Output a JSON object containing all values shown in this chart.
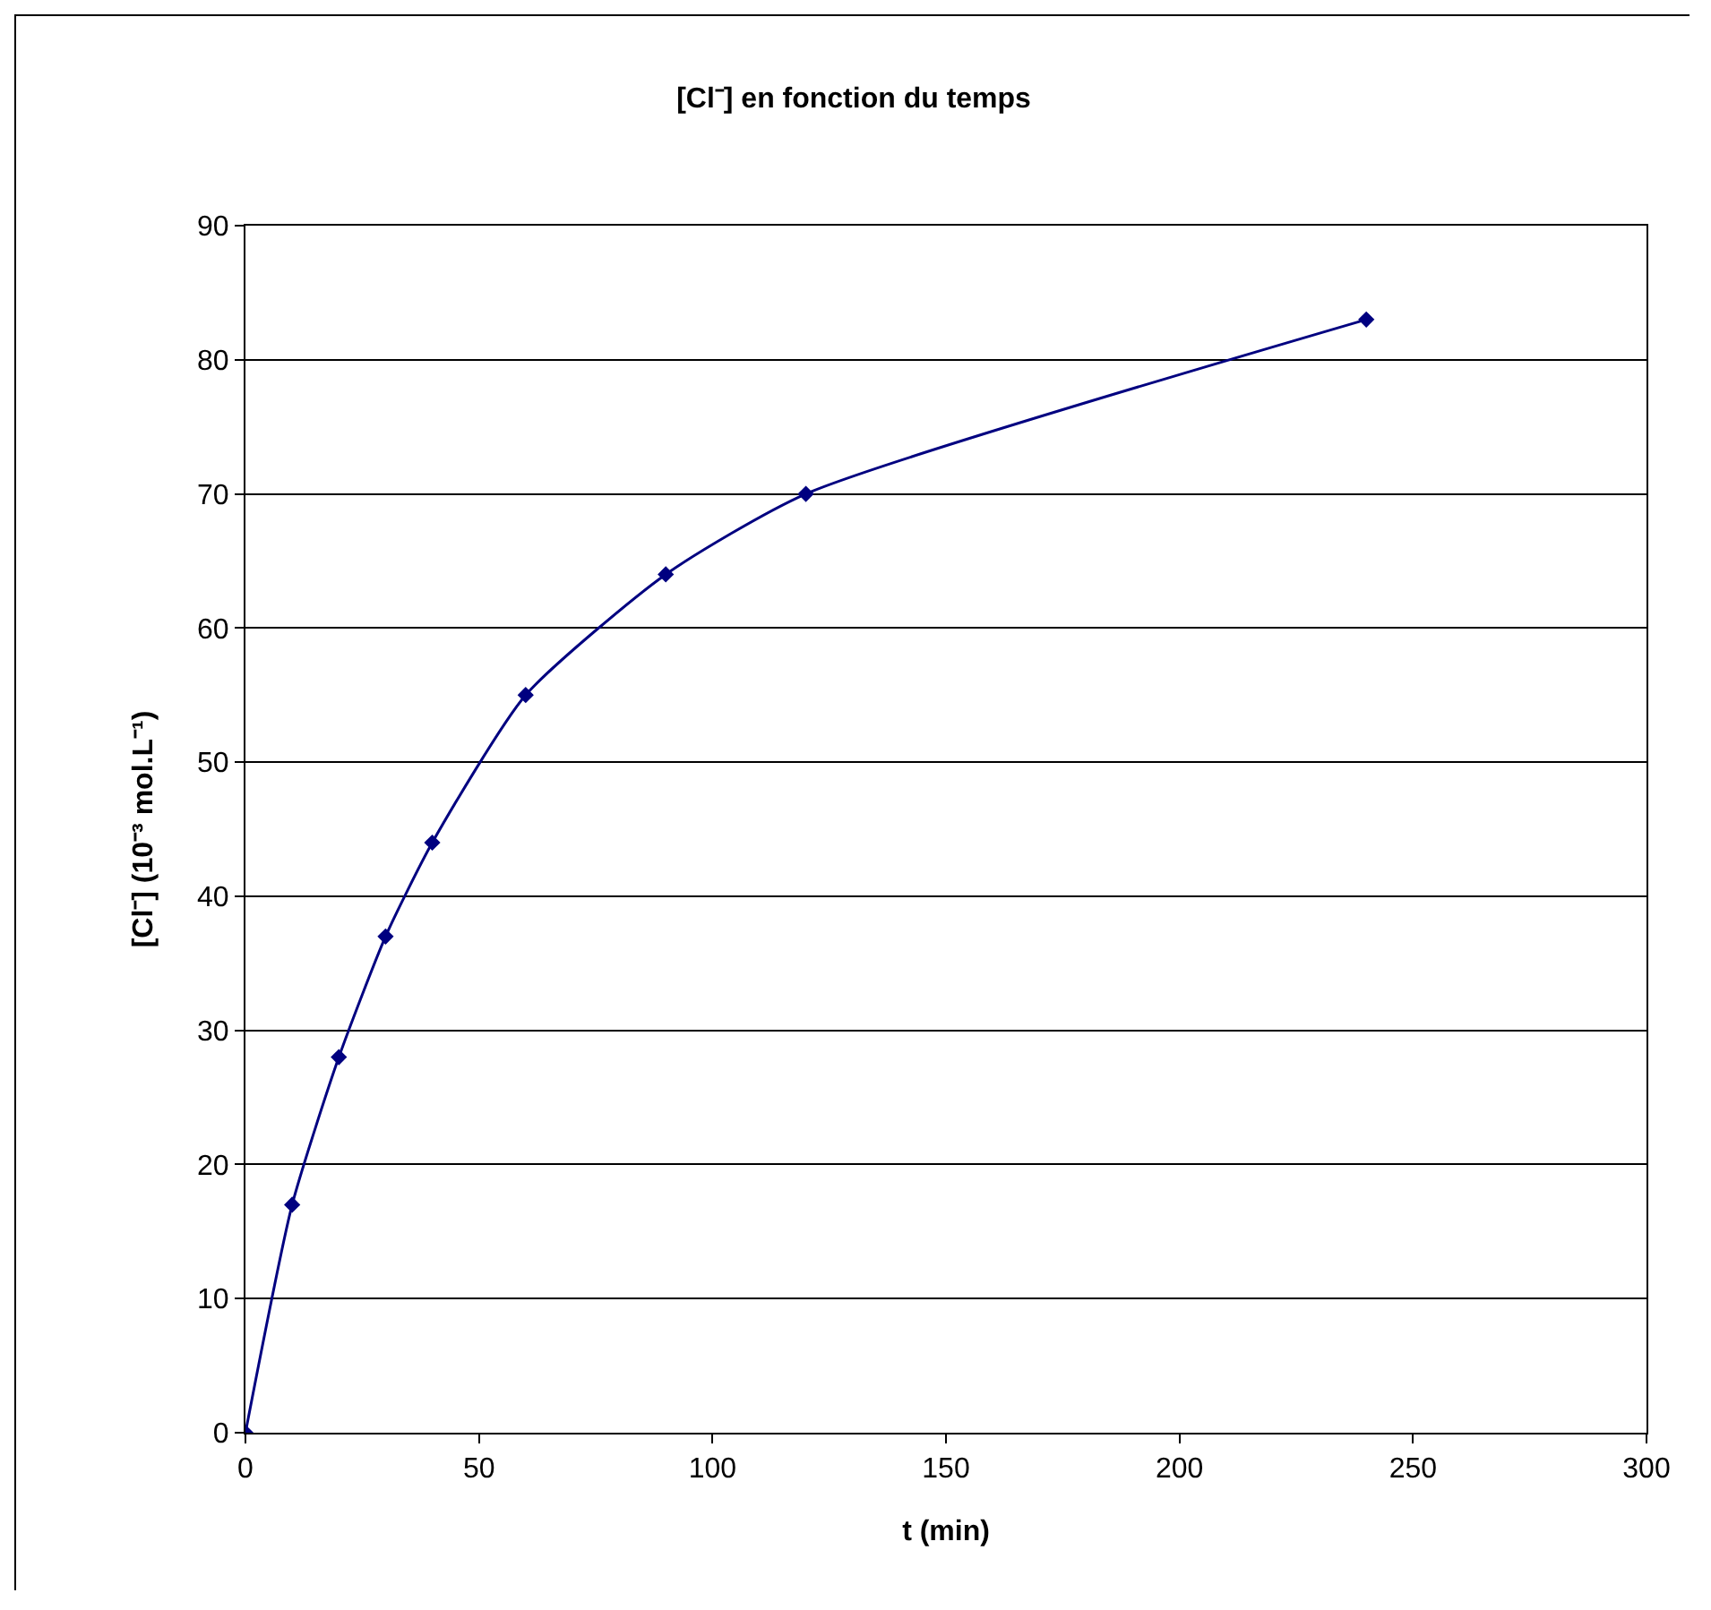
{
  "chart_data": {
    "type": "line",
    "title": "[Cl⁻] en fonction du temps",
    "xlabel": "t (min)",
    "ylabel": "[Cl⁻] (10⁻³ mol.L⁻¹)",
    "x": [
      0,
      10,
      20,
      30,
      40,
      60,
      90,
      120,
      240
    ],
    "series": [
      {
        "color": "#000080",
        "values": [
          0,
          17,
          28,
          37,
          44,
          55,
          64,
          70,
          83
        ]
      }
    ],
    "xlim": [
      0,
      300
    ],
    "xticks": [
      0,
      50,
      100,
      150,
      200,
      250,
      300
    ],
    "ylim": [
      0,
      90
    ],
    "yticks": [
      0,
      10,
      20,
      30,
      40,
      50,
      60,
      70,
      80,
      90
    ],
    "grid": "y",
    "marker": "diamond",
    "line_style": "solid"
  }
}
